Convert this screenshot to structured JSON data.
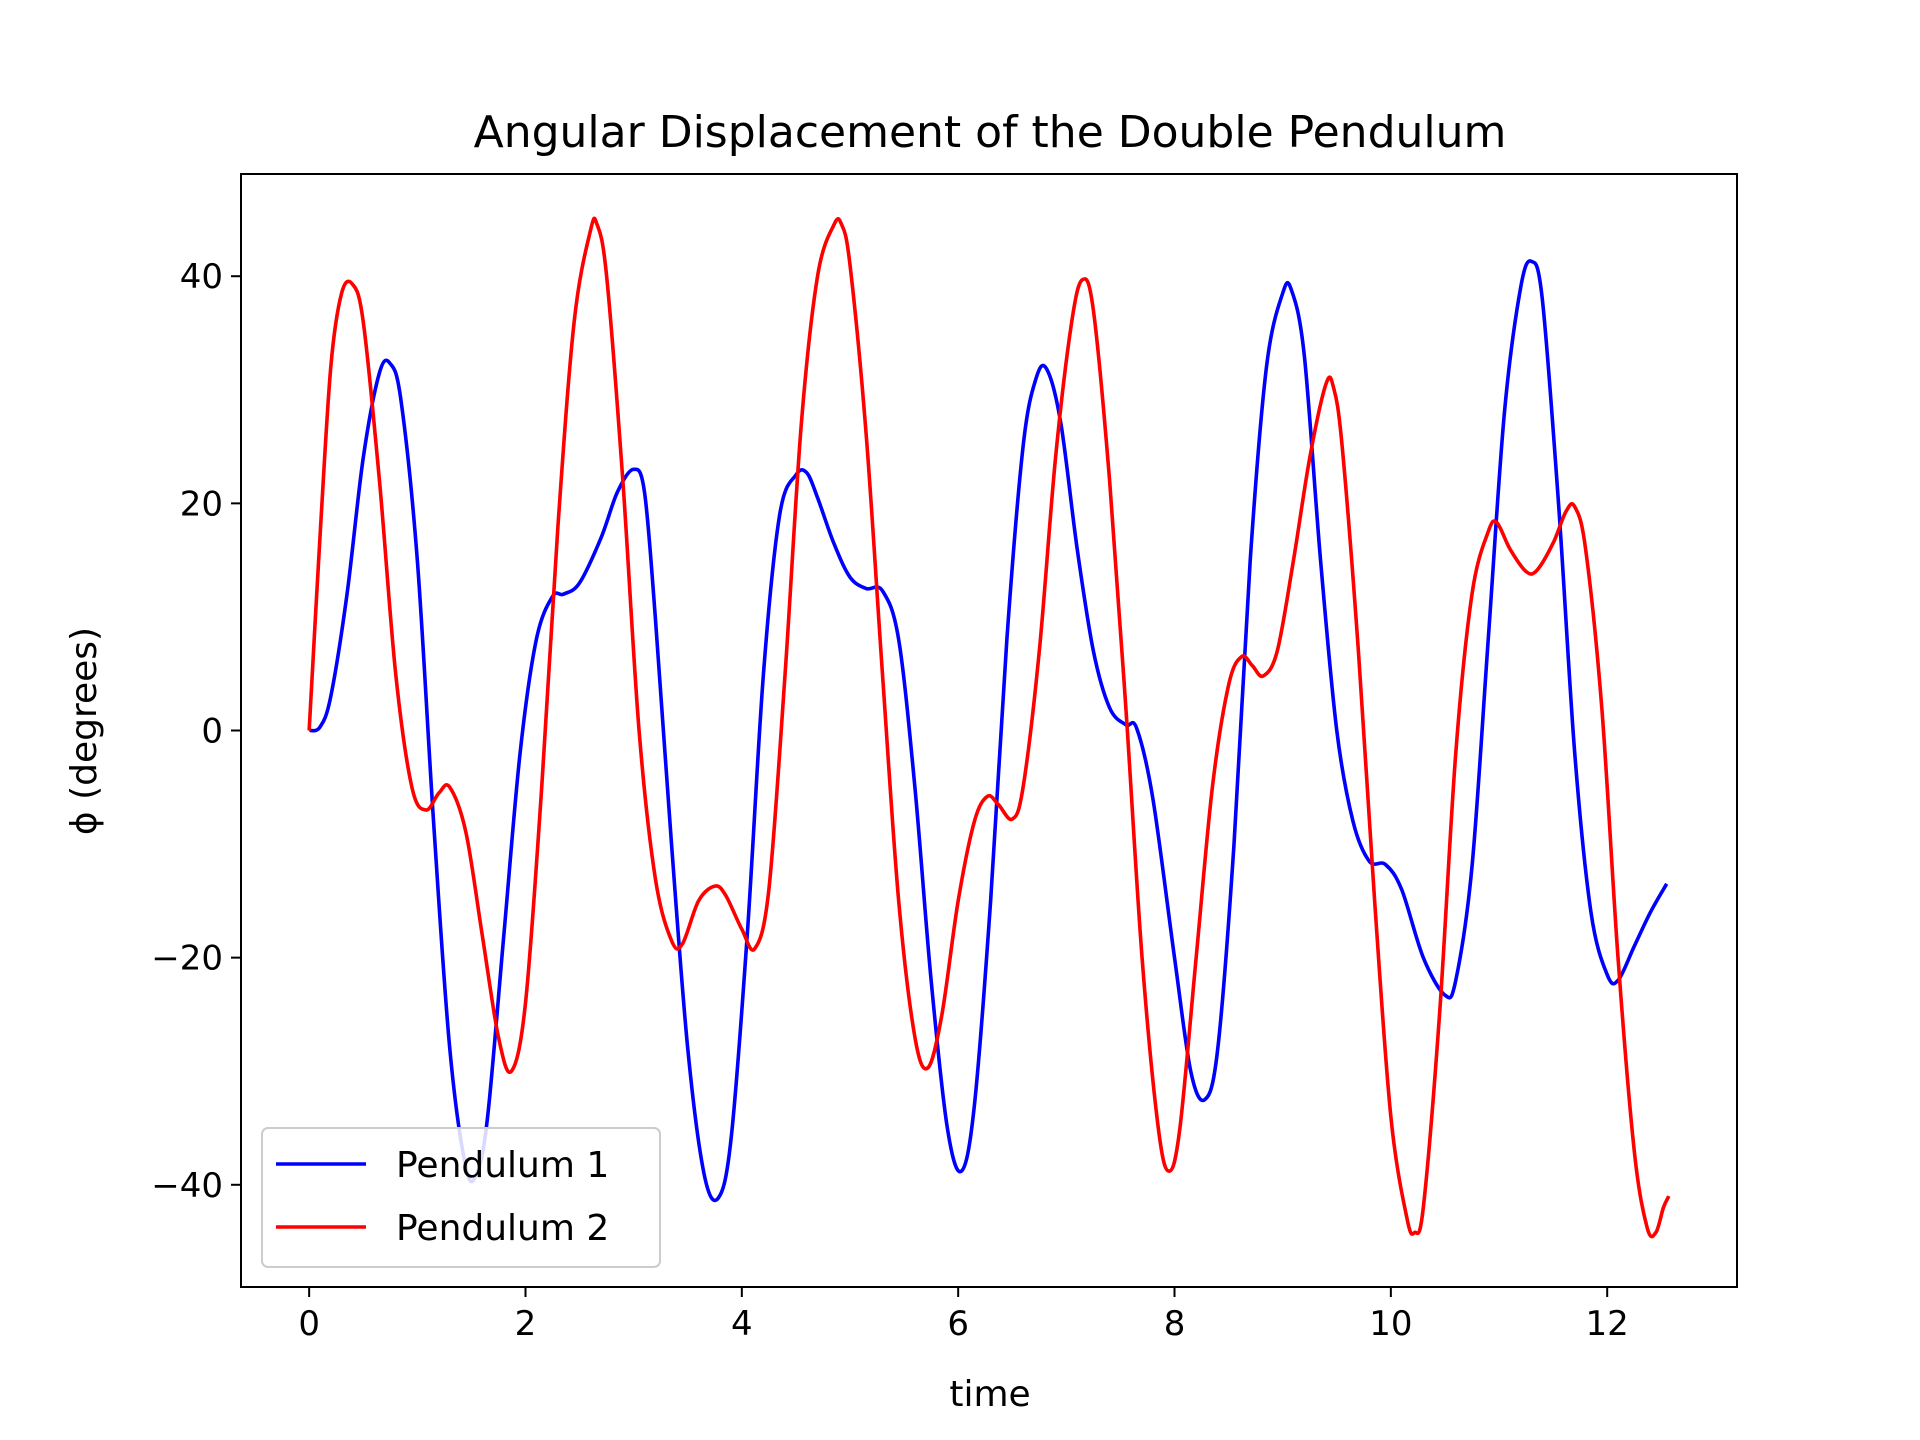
{
  "chart_data": {
    "type": "line",
    "title": "Angular Displacement of the Double Pendulum",
    "xlabel": "time",
    "ylabel": "ϕ (degrees)",
    "xlim": [
      -0.63,
      13.2
    ],
    "ylim": [
      -49,
      49
    ],
    "xticks": [
      0,
      2,
      4,
      6,
      8,
      10,
      12
    ],
    "yticks": [
      -40,
      -20,
      0,
      20,
      40
    ],
    "xtick_labels": [
      "0",
      "2",
      "4",
      "6",
      "8",
      "10",
      "12"
    ],
    "ytick_labels": [
      "−40",
      "−20",
      "0",
      "20",
      "40"
    ],
    "legend_position": "lower-left",
    "grid": false,
    "series": [
      {
        "name": "Pendulum 1",
        "color": "#0000ff",
        "points": [
          [
            0,
            0
          ],
          [
            0.1,
            0.3
          ],
          [
            0.2,
            3
          ],
          [
            0.35,
            12
          ],
          [
            0.5,
            24
          ],
          [
            0.65,
            31.5
          ],
          [
            0.75,
            32.3
          ],
          [
            0.85,
            29
          ],
          [
            1.0,
            15
          ],
          [
            1.15,
            -8
          ],
          [
            1.3,
            -28
          ],
          [
            1.45,
            -38.5
          ],
          [
            1.55,
            -39
          ],
          [
            1.65,
            -34
          ],
          [
            1.8,
            -18
          ],
          [
            1.95,
            -2
          ],
          [
            2.1,
            8
          ],
          [
            2.25,
            11.8
          ],
          [
            2.35,
            12
          ],
          [
            2.5,
            13
          ],
          [
            2.7,
            17
          ],
          [
            2.85,
            21
          ],
          [
            3.0,
            23
          ],
          [
            3.1,
            21
          ],
          [
            3.2,
            10
          ],
          [
            3.35,
            -10
          ],
          [
            3.5,
            -28
          ],
          [
            3.65,
            -39
          ],
          [
            3.78,
            -41.2
          ],
          [
            3.9,
            -36
          ],
          [
            4.05,
            -18
          ],
          [
            4.2,
            5
          ],
          [
            4.35,
            19
          ],
          [
            4.5,
            22.5
          ],
          [
            4.6,
            22.7
          ],
          [
            4.7,
            20.5
          ],
          [
            4.85,
            16.5
          ],
          [
            5.0,
            13.5
          ],
          [
            5.15,
            12.5
          ],
          [
            5.3,
            12.3
          ],
          [
            5.45,
            8
          ],
          [
            5.6,
            -5
          ],
          [
            5.75,
            -22
          ],
          [
            5.9,
            -35
          ],
          [
            6.03,
            -38.8
          ],
          [
            6.15,
            -33
          ],
          [
            6.3,
            -15
          ],
          [
            6.45,
            8
          ],
          [
            6.6,
            25
          ],
          [
            6.72,
            31
          ],
          [
            6.82,
            31.8
          ],
          [
            6.95,
            27
          ],
          [
            7.1,
            16
          ],
          [
            7.25,
            7
          ],
          [
            7.4,
            2
          ],
          [
            7.55,
            0.5
          ],
          [
            7.65,
            0.2
          ],
          [
            7.8,
            -6
          ],
          [
            8.0,
            -20
          ],
          [
            8.15,
            -30
          ],
          [
            8.28,
            -32.5
          ],
          [
            8.4,
            -28
          ],
          [
            8.55,
            -10
          ],
          [
            8.7,
            15
          ],
          [
            8.85,
            32
          ],
          [
            9.0,
            38.5
          ],
          [
            9.08,
            38.8
          ],
          [
            9.2,
            33
          ],
          [
            9.35,
            15
          ],
          [
            9.5,
            0
          ],
          [
            9.65,
            -8
          ],
          [
            9.8,
            -11.5
          ],
          [
            9.95,
            -11.8
          ],
          [
            10.1,
            -14
          ],
          [
            10.3,
            -20
          ],
          [
            10.5,
            -23.3
          ],
          [
            10.6,
            -22
          ],
          [
            10.75,
            -12
          ],
          [
            10.9,
            8
          ],
          [
            11.05,
            28
          ],
          [
            11.2,
            39
          ],
          [
            11.3,
            41.3
          ],
          [
            11.4,
            38
          ],
          [
            11.55,
            20
          ],
          [
            11.7,
            -2
          ],
          [
            11.85,
            -16
          ],
          [
            12.0,
            -21.5
          ],
          [
            12.1,
            -22
          ],
          [
            12.25,
            -19
          ],
          [
            12.4,
            -16
          ],
          [
            12.55,
            -13.5
          ]
        ]
      },
      {
        "name": "Pendulum 2",
        "color": "#ff0000",
        "points": [
          [
            0,
            0
          ],
          [
            0.1,
            17
          ],
          [
            0.2,
            32
          ],
          [
            0.3,
            38.5
          ],
          [
            0.4,
            39.3
          ],
          [
            0.5,
            36
          ],
          [
            0.65,
            22
          ],
          [
            0.8,
            5
          ],
          [
            0.95,
            -5
          ],
          [
            1.08,
            -7
          ],
          [
            1.2,
            -5.5
          ],
          [
            1.3,
            -5
          ],
          [
            1.45,
            -9
          ],
          [
            1.6,
            -18
          ],
          [
            1.75,
            -27
          ],
          [
            1.87,
            -30
          ],
          [
            2.0,
            -24
          ],
          [
            2.15,
            -5
          ],
          [
            2.3,
            18
          ],
          [
            2.45,
            36
          ],
          [
            2.6,
            44
          ],
          [
            2.66,
            44.6
          ],
          [
            2.75,
            40
          ],
          [
            2.9,
            22
          ],
          [
            3.05,
            0
          ],
          [
            3.2,
            -13
          ],
          [
            3.35,
            -18.5
          ],
          [
            3.45,
            -18.8
          ],
          [
            3.6,
            -15
          ],
          [
            3.75,
            -13.7
          ],
          [
            3.85,
            -14.5
          ],
          [
            4.0,
            -17.5
          ],
          [
            4.12,
            -19.2
          ],
          [
            4.25,
            -14
          ],
          [
            4.4,
            5
          ],
          [
            4.55,
            27
          ],
          [
            4.7,
            40
          ],
          [
            4.85,
            44.5
          ],
          [
            4.92,
            44.6
          ],
          [
            5.0,
            41
          ],
          [
            5.15,
            26
          ],
          [
            5.3,
            5
          ],
          [
            5.45,
            -15
          ],
          [
            5.6,
            -27
          ],
          [
            5.72,
            -29.7
          ],
          [
            5.85,
            -25
          ],
          [
            6.0,
            -15
          ],
          [
            6.15,
            -8
          ],
          [
            6.27,
            -5.8
          ],
          [
            6.37,
            -6.5
          ],
          [
            6.5,
            -7.8
          ],
          [
            6.6,
            -5
          ],
          [
            6.75,
            7
          ],
          [
            6.9,
            24
          ],
          [
            7.05,
            36
          ],
          [
            7.15,
            39.7
          ],
          [
            7.25,
            37
          ],
          [
            7.4,
            22
          ],
          [
            7.55,
            2
          ],
          [
            7.7,
            -20
          ],
          [
            7.85,
            -35
          ],
          [
            7.95,
            -38.8
          ],
          [
            8.05,
            -35
          ],
          [
            8.2,
            -20
          ],
          [
            8.35,
            -5
          ],
          [
            8.5,
            4
          ],
          [
            8.62,
            6.5
          ],
          [
            8.72,
            5.7
          ],
          [
            8.82,
            4.8
          ],
          [
            8.95,
            7
          ],
          [
            9.1,
            15
          ],
          [
            9.25,
            24
          ],
          [
            9.4,
            30.5
          ],
          [
            9.47,
            30.2
          ],
          [
            9.55,
            25
          ],
          [
            9.7,
            7
          ],
          [
            9.85,
            -15
          ],
          [
            10.0,
            -34
          ],
          [
            10.15,
            -43
          ],
          [
            10.22,
            -44.2
          ],
          [
            10.3,
            -42
          ],
          [
            10.45,
            -25
          ],
          [
            10.6,
            -2
          ],
          [
            10.75,
            12
          ],
          [
            10.9,
            17.5
          ],
          [
            10.98,
            18.3
          ],
          [
            11.1,
            16
          ],
          [
            11.25,
            14
          ],
          [
            11.35,
            14.1
          ],
          [
            11.5,
            16.5
          ],
          [
            11.62,
            19.3
          ],
          [
            11.7,
            19.7
          ],
          [
            11.8,
            16
          ],
          [
            11.95,
            2
          ],
          [
            12.1,
            -20
          ],
          [
            12.25,
            -37
          ],
          [
            12.37,
            -43.8
          ],
          [
            12.45,
            -44.2
          ],
          [
            12.52,
            -42
          ],
          [
            12.57,
            -41
          ]
        ]
      }
    ]
  }
}
